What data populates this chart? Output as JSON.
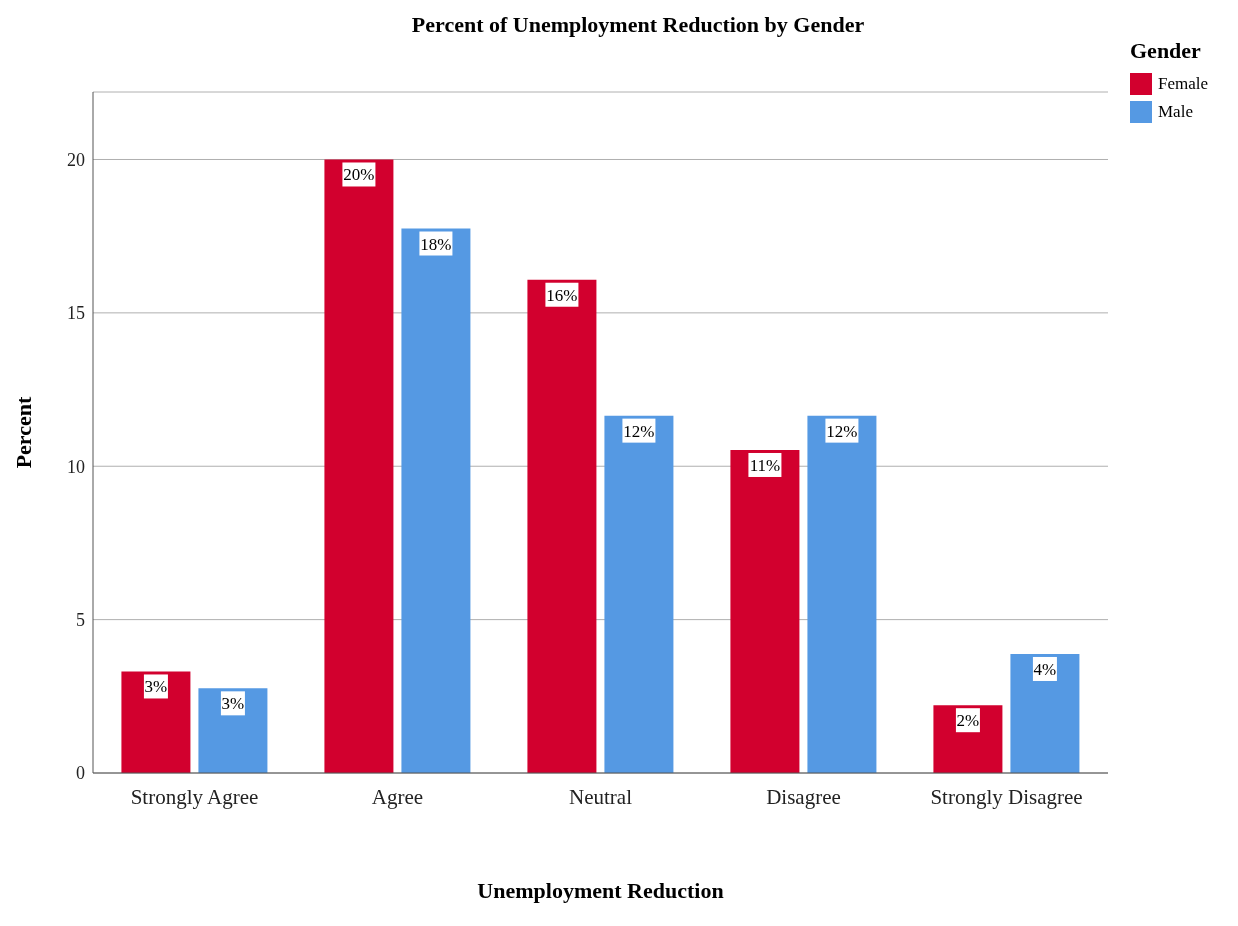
{
  "chart_data": {
    "type": "bar",
    "title": "Percent of Unemployment Reduction by Gender",
    "xlabel": "Unemployment Reduction",
    "ylabel": "Percent",
    "legend_title": "Gender",
    "categories": [
      "Strongly Agree",
      "Agree",
      "Neutral",
      "Disagree",
      "Strongly Disagree"
    ],
    "series": [
      {
        "name": "Female",
        "color": "#d2002e",
        "values": [
          3.31,
          20.0,
          16.08,
          10.53,
          2.21
        ],
        "value_labels": [
          "3%",
          "20%",
          "16%",
          "11%",
          "2%"
        ]
      },
      {
        "name": "Male",
        "color": "#5599e3",
        "values": [
          2.76,
          17.75,
          11.65,
          11.65,
          3.88
        ],
        "value_labels": [
          "3%",
          "18%",
          "12%",
          "12%",
          "4%"
        ]
      }
    ],
    "ylim": [
      0,
      22.2
    ],
    "yticks": [
      0,
      5,
      10,
      15,
      20
    ],
    "grid": "y",
    "legend": "top right"
  }
}
